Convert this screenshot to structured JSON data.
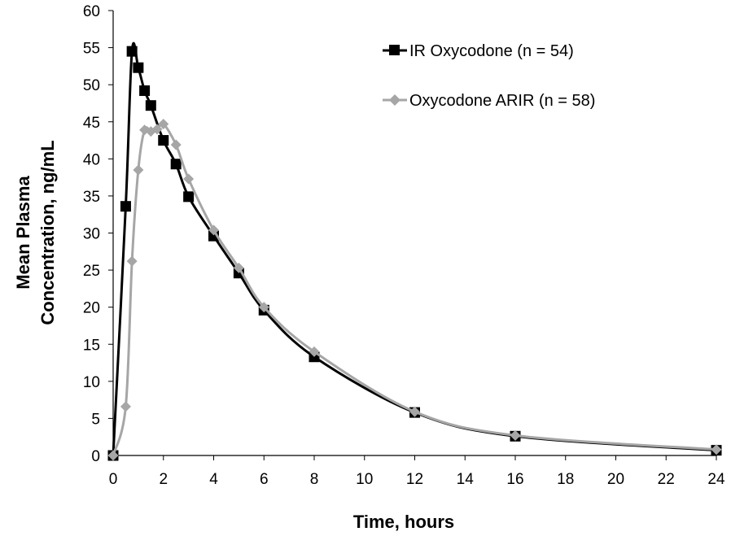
{
  "chart_data": {
    "type": "line",
    "title": "",
    "xlabel": "Time, hours",
    "ylabel_lines": [
      "Mean Plasma",
      "Concentration, ng/mL"
    ],
    "xlim": [
      0,
      24
    ],
    "ylim": [
      0,
      60
    ],
    "x_ticks": [
      0,
      2,
      4,
      6,
      8,
      10,
      12,
      14,
      16,
      18,
      20,
      22,
      24
    ],
    "y_ticks": [
      0,
      5,
      10,
      15,
      20,
      25,
      30,
      35,
      40,
      45,
      50,
      55,
      60
    ],
    "grid": false,
    "legend_position": "top-right",
    "series": [
      {
        "name": "IR Oxycodone (n = 54)",
        "color": "#000000",
        "marker": "square",
        "x": [
          0,
          0.5,
          0.75,
          1,
          1.25,
          1.5,
          2,
          2.5,
          3,
          4,
          5,
          6,
          8,
          12,
          16,
          24
        ],
        "y": [
          0,
          33.6,
          54.5,
          52.3,
          49.2,
          47.2,
          42.5,
          39.3,
          34.9,
          29.6,
          24.6,
          19.6,
          13.3,
          5.8,
          2.6,
          0.7
        ]
      },
      {
        "name": "Oxycodone ARIR (n = 58)",
        "color": "#A6A6A6",
        "marker": "diamond",
        "x": [
          0,
          0.5,
          0.75,
          1,
          1.25,
          1.5,
          1.75,
          2,
          2.5,
          3,
          4,
          5,
          6,
          8,
          12,
          16,
          24
        ],
        "y": [
          0,
          6.6,
          26.2,
          38.5,
          43.9,
          43.7,
          44.0,
          44.7,
          41.9,
          37.3,
          30.4,
          25.3,
          20.0,
          14.0,
          5.9,
          2.7,
          0.8
        ]
      }
    ]
  }
}
